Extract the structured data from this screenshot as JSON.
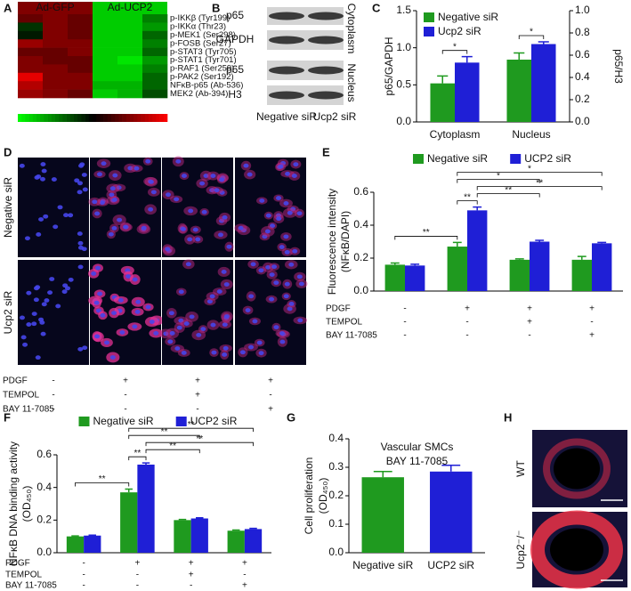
{
  "panel_labels": [
    "A",
    "B",
    "C",
    "D",
    "E",
    "F",
    "G",
    "H"
  ],
  "blot": {
    "rows": [
      "p65",
      "GAPDH",
      "p65",
      "H3"
    ],
    "fractions": [
      "Cytoplasm",
      "Nucleus"
    ],
    "lanes": [
      "Negative siR",
      "Ucp2 siR"
    ]
  },
  "micrographs": {
    "rows": [
      "Negative siR",
      "Ucp2 siR"
    ],
    "conditions": {
      "rows": [
        "PDGF",
        "TEMPOL",
        "BAY 11-7085"
      ],
      "values": [
        [
          "-",
          "+",
          "+",
          "+"
        ],
        [
          "-",
          "-",
          "+",
          "-"
        ],
        [
          "-",
          "-",
          "-",
          "+"
        ]
      ]
    }
  },
  "tissue": {
    "rows": [
      "WT",
      "Ucp2⁻/⁻"
    ]
  },
  "chart_data": [
    {
      "type": "heatmap",
      "column_groups": [
        "Ad-GFP",
        "Ad-UCP2"
      ],
      "rows": [
        "p-IKKβ (Tyr199)",
        "p-IKKα (Thr23)",
        "p-MEK1 (Ser298)",
        "p-FOSB (Ser27)",
        "p-STAT3 (Tyr705)",
        "p-STAT1 (Tyr701)",
        "p-RAF1 (Ser259)",
        "p-PAK2 (Ser192)",
        "NFκB-p65 (Ab-536)",
        "MEK2 (Ab-394)"
      ],
      "zlim": [
        0,
        1
      ],
      "values": [
        [
          0.7,
          0.75,
          0.7,
          0.1,
          0.1,
          0.25
        ],
        [
          0.4,
          0.75,
          0.7,
          0.1,
          0.1,
          0.2
        ],
        [
          0.45,
          0.75,
          0.7,
          0.1,
          0.1,
          0.3
        ],
        [
          0.8,
          0.75,
          0.75,
          0.1,
          0.1,
          0.25
        ],
        [
          0.7,
          0.7,
          0.75,
          0.1,
          0.1,
          0.3
        ],
        [
          0.75,
          0.7,
          0.7,
          0.1,
          0.05,
          0.2
        ],
        [
          0.75,
          0.75,
          0.7,
          0.1,
          0.1,
          0.25
        ],
        [
          0.95,
          0.75,
          0.75,
          0.1,
          0.1,
          0.3
        ],
        [
          0.85,
          0.75,
          0.75,
          0.15,
          0.15,
          0.3
        ],
        [
          0.8,
          0.75,
          0.7,
          0.1,
          0.15,
          0.35
        ]
      ]
    },
    {
      "type": "bar",
      "categories": [
        "Cytoplasm",
        "Nucleus"
      ],
      "series": [
        {
          "name": "Negative siR",
          "color": "#1f9a1f",
          "values": [
            0.52,
            0.84
          ],
          "errors": [
            0.1,
            0.09
          ]
        },
        {
          "name": "Ucp2 siR",
          "color": "#1f1fd6",
          "values": [
            0.8,
            1.05
          ],
          "errors": [
            0.08,
            0.03
          ]
        }
      ],
      "y_label": [
        "p65/GAPDH"
      ],
      "ylim": [
        0,
        1.5
      ],
      "yticks": [
        {
          "value": 0,
          "label": "0.0"
        },
        0.5,
        {
          "value": 1,
          "label": "1.0"
        },
        1.5
      ],
      "y2_label": [
        "p65/H3"
      ],
      "y2lim": [
        0,
        1
      ],
      "y2ticks": [
        {
          "value": 0,
          "label": "0.0"
        },
        0.2,
        0.4,
        0.6,
        0.8,
        {
          "value": 1,
          "label": "1.0"
        }
      ],
      "legend": "upper left",
      "brackets": [
        {
          "label": "*",
          "from": [
            0,
            0
          ],
          "to": [
            1,
            0
          ]
        },
        {
          "label": "*",
          "from": [
            0,
            1
          ],
          "to": [
            1,
            1
          ]
        }
      ]
    },
    {
      "type": "bar",
      "categories": [
        null,
        null,
        null,
        null
      ],
      "series": [
        {
          "name": "Negative siR",
          "color": "#1f9a1f",
          "values": [
            0.16,
            0.27,
            0.19,
            0.19
          ],
          "errors": [
            0.01,
            0.025,
            0.005,
            0.02
          ]
        },
        {
          "name": "UCP2 siR",
          "color": "#1f1fd6",
          "values": [
            0.155,
            0.49,
            0.3,
            0.29
          ],
          "errors": [
            0.008,
            0.02,
            0.008,
            0.005
          ]
        }
      ],
      "y_label": [
        "Fluorescence intensity",
        "(NFκB/DAPI)"
      ],
      "ylim": [
        0,
        0.6
      ],
      "yticks": [
        {
          "value": 0,
          "label": "0.0"
        },
        0.2,
        0.4,
        0.6
      ],
      "legend": "top",
      "brackets": [
        {
          "label": "**",
          "from": [
            0,
            0
          ],
          "to": [
            0,
            1
          ]
        },
        {
          "label": "**",
          "from": [
            0,
            1
          ],
          "to": [
            1,
            1
          ]
        },
        {
          "label": "**",
          "from": [
            1,
            1
          ],
          "to": [
            1,
            2
          ]
        },
        {
          "label": "**",
          "from": [
            1,
            1
          ],
          "to": [
            1,
            3
          ]
        },
        {
          "label": "*",
          "from": [
            0,
            1
          ],
          "to": [
            1,
            2
          ]
        },
        {
          "label": "*",
          "from": [
            0,
            1
          ],
          "to": [
            1,
            3
          ]
        }
      ],
      "conditions": {
        "rows": [
          "PDGF",
          "TEMPOL",
          "BAY 11-7085"
        ],
        "values": [
          [
            "-",
            "+",
            "+",
            "+"
          ],
          [
            "-",
            "-",
            "+",
            "-"
          ],
          [
            "-",
            "-",
            "-",
            "+"
          ]
        ]
      }
    },
    {
      "type": "bar",
      "categories": [
        null,
        null,
        null,
        null
      ],
      "series": [
        {
          "name": "Negative siR",
          "color": "#1f9a1f",
          "values": [
            0.1,
            0.37,
            0.2,
            0.135
          ],
          "errors": [
            0.003,
            0.02,
            0.004,
            0.004
          ]
        },
        {
          "name": "UCP2 siR",
          "color": "#1f1fd6",
          "values": [
            0.105,
            0.54,
            0.21,
            0.145
          ],
          "errors": [
            0.003,
            0.01,
            0.004,
            0.004
          ]
        }
      ],
      "y_label": [
        "NFκB DNA binding activity",
        "(OD₄₅₀)"
      ],
      "ylim": [
        0,
        0.6
      ],
      "yticks": [
        {
          "value": 0,
          "label": "0.0"
        },
        0.2,
        0.4,
        0.6
      ],
      "legend": "top",
      "brackets": [
        {
          "label": "**",
          "from": [
            0,
            0
          ],
          "to": [
            0,
            1
          ]
        },
        {
          "label": "**",
          "from": [
            0,
            1
          ],
          "to": [
            1,
            1
          ]
        },
        {
          "label": "**",
          "from": [
            1,
            1
          ],
          "to": [
            1,
            2
          ]
        },
        {
          "label": "**",
          "from": [
            1,
            1
          ],
          "to": [
            1,
            3
          ]
        },
        {
          "label": "**",
          "from": [
            0,
            1
          ],
          "to": [
            1,
            2
          ]
        },
        {
          "label": "**",
          "from": [
            0,
            1
          ],
          "to": [
            1,
            3
          ]
        }
      ],
      "conditions": {
        "rows": [
          "PDGF",
          "TEMPOL",
          "BAY 11-7085"
        ],
        "values": [
          [
            "-",
            "+",
            "+",
            "+"
          ],
          [
            "-",
            "-",
            "+",
            "-"
          ],
          [
            "-",
            "-",
            "-",
            "+"
          ]
        ]
      }
    },
    {
      "type": "bar",
      "title": [
        "Vascular SMCs",
        "BAY 11-7085"
      ],
      "categories": [
        "Negative siR",
        "UCP2 siR"
      ],
      "values": [
        0.265,
        0.285
      ],
      "errors": [
        0.02,
        0.022
      ],
      "colors": [
        "#1f9a1f",
        "#1f1fd6"
      ],
      "y_label": [
        "Cell proliferation",
        "(OD₄₅₀)"
      ],
      "ylim": [
        0,
        0.4
      ],
      "yticks": [
        {
          "value": 0,
          "label": "0.0"
        },
        0.1,
        0.2,
        0.3,
        0.4
      ]
    }
  ]
}
